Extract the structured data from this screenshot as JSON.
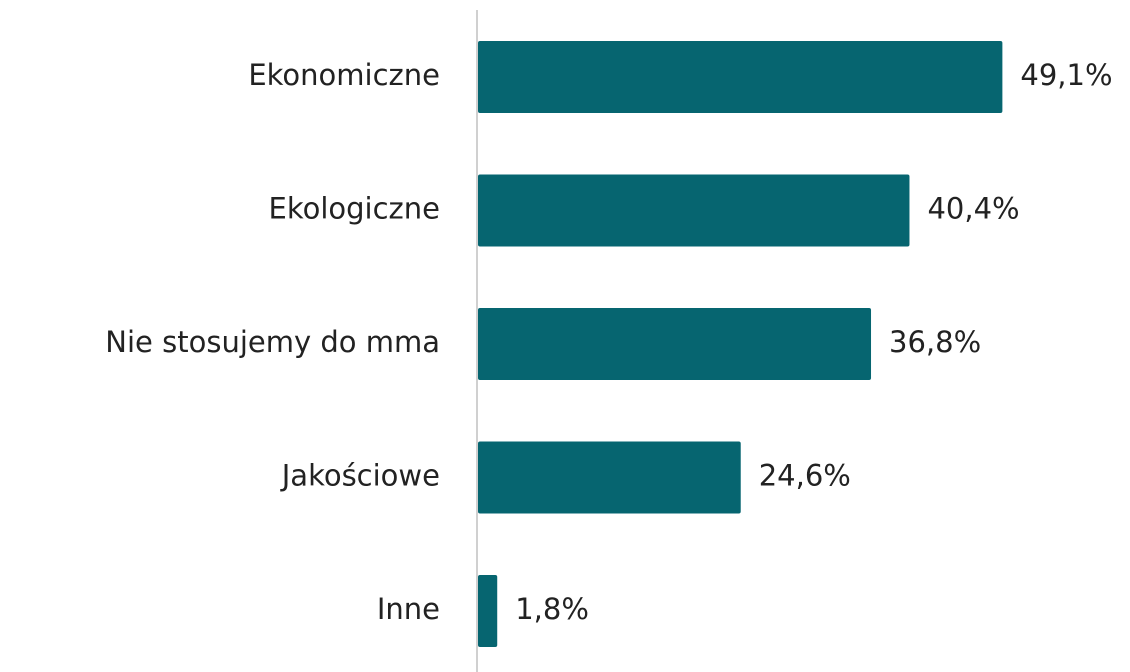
{
  "chart_data": {
    "type": "barh",
    "categories": [
      "Ekonomiczne",
      "Ekologiczne",
      "Nie stosujemy do mma",
      "Jakościowe",
      "Inne"
    ],
    "values": [
      49.1,
      40.4,
      36.8,
      24.6,
      1.8
    ],
    "value_labels": [
      "49,1%",
      "40,4%",
      "36,8%",
      "24,6%",
      "1,8%"
    ],
    "color": "#066570"
  }
}
